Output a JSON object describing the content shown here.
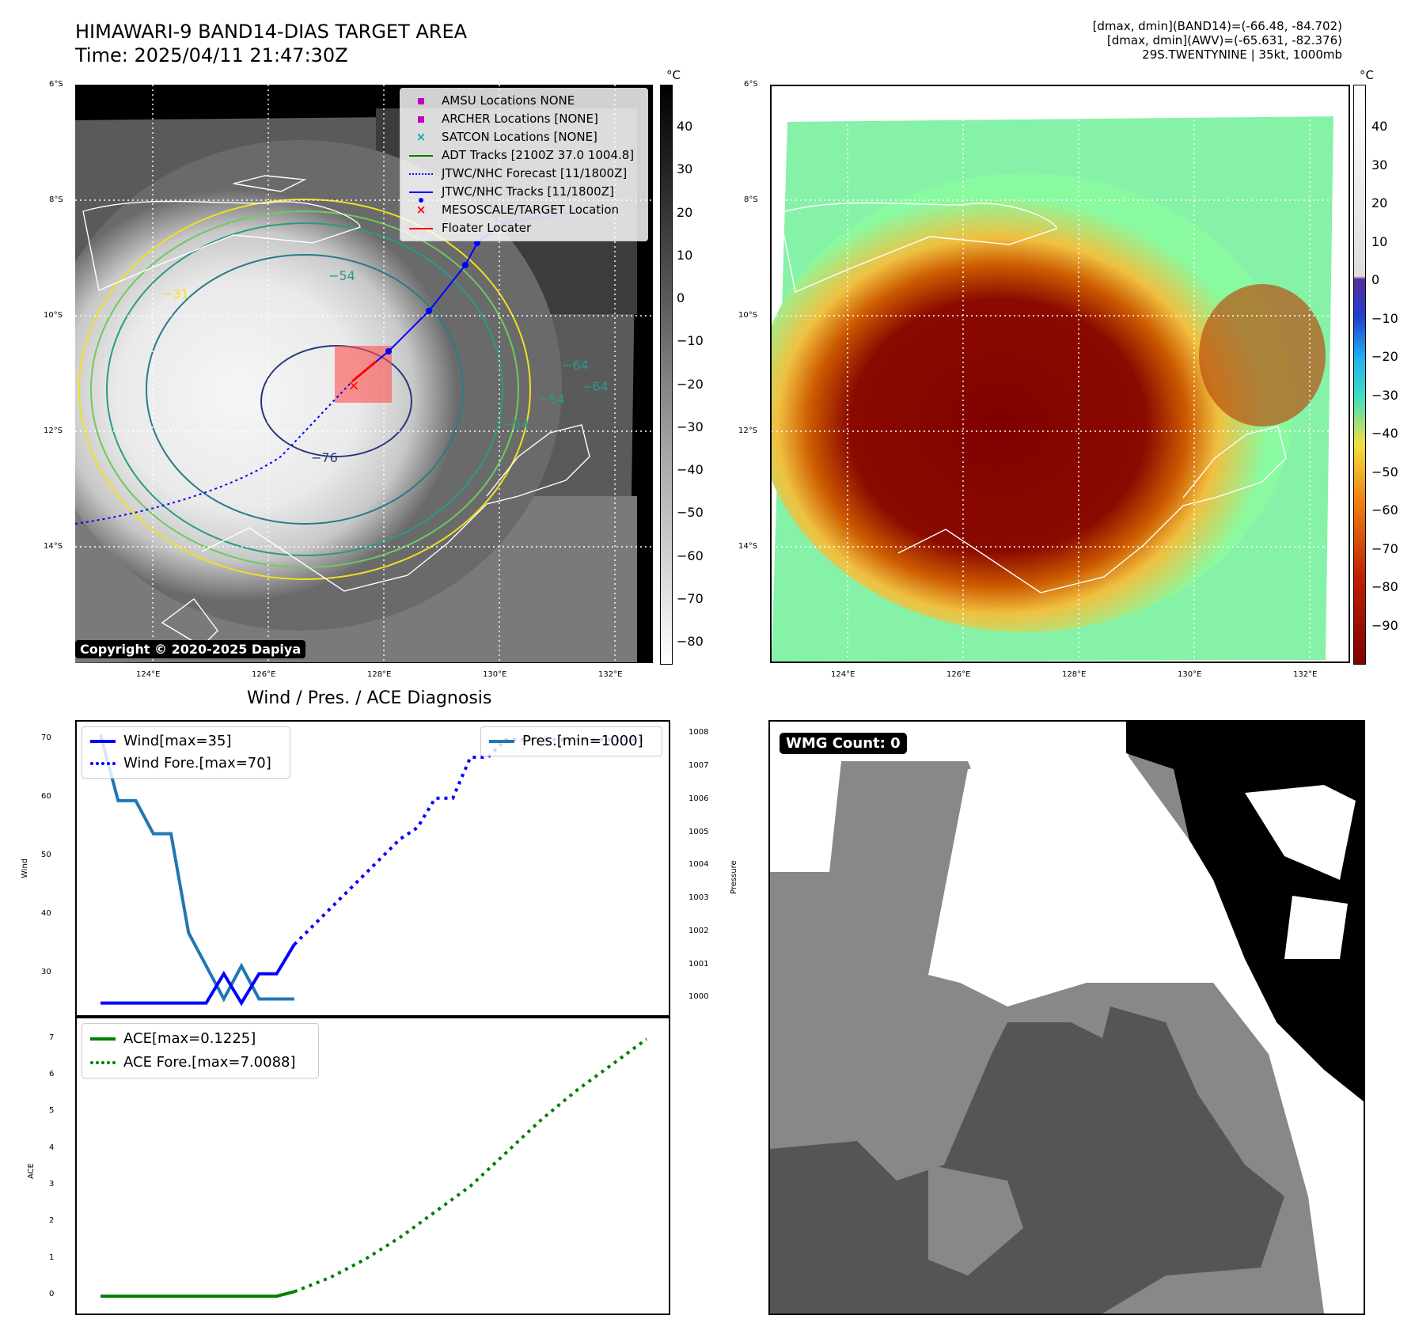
{
  "header": {
    "title_line1": "HIMAWARI-9 BAND14-DIAS TARGET AREA",
    "title_line2": "Time: 2025/04/11 21:47:30Z",
    "info_line1": "[dmax, dmin](BAND14)=(-66.48, -84.702)",
    "info_line2": "[dmax, dmin](AWV)=(-65.631, -82.376)",
    "info_line3": "29S.TWENTYNINE | 35kt, 1000mb"
  },
  "map": {
    "lat_labels": [
      "6°S",
      "8°S",
      "10°S",
      "12°S",
      "14°S"
    ],
    "lon_labels": [
      "124°E",
      "126°E",
      "128°E",
      "130°E",
      "132°E"
    ],
    "colorbar_unit": "°C",
    "colorbar_left_ticks": [
      "40",
      "30",
      "20",
      "10",
      "0",
      "−10",
      "−20",
      "−30",
      "−40",
      "−50",
      "−60",
      "−70",
      "−80"
    ],
    "colorbar_right_ticks": [
      "40",
      "30",
      "20",
      "10",
      "0",
      "−10",
      "−20",
      "−30",
      "−40",
      "−50",
      "−60",
      "−70",
      "−80",
      "−90"
    ],
    "contour_labels": [
      "−31",
      "−54",
      "−64",
      "−76",
      "−54",
      "−64",
      "−54"
    ],
    "copyright": "Copyright © 2020-2025 Dapiya",
    "legend": [
      {
        "label": "AMSU Locations NONE",
        "icon": "square-marker",
        "color": "#c000c0"
      },
      {
        "label": "ARCHER Locations [NONE]",
        "icon": "square-marker",
        "color": "#c000c0"
      },
      {
        "label": "SATCON Locations [NONE]",
        "icon": "x-marker",
        "color": "#00b0b0"
      },
      {
        "label": "ADT Tracks [2100Z 37.0 1004.8]",
        "icon": "solid-line",
        "color": "#008000"
      },
      {
        "label": "JTWC/NHC Forecast [11/1800Z]",
        "icon": "dotted-line",
        "color": "#0000ff"
      },
      {
        "label": "JTWC/NHC Tracks [11/1800Z]",
        "icon": "line-dot",
        "color": "#0000ff"
      },
      {
        "label": "MESOSCALE/TARGET Location",
        "icon": "x-marker",
        "color": "#ff0000"
      },
      {
        "label": "Floater Locater",
        "icon": "solid-line",
        "color": "#ff0000"
      }
    ]
  },
  "diagnosis": {
    "title": "Wind / Pres. / ACE Diagnosis",
    "wind_ylabel": "Wind",
    "pres_ylabel": "Pressure",
    "ace_ylabel": "ACE",
    "legend_wind": "Wind[max=35]",
    "legend_wind_fore": "Wind Fore.[max=70]",
    "legend_pres": "Pres.[min=1000]",
    "legend_ace": "ACE[max=0.1225]",
    "legend_ace_fore": "ACE Fore.[max=7.0088]"
  },
  "wmg": {
    "label": "WMG Count: 0"
  },
  "chart_data": [
    {
      "type": "line",
      "title": "Wind / Pres. / ACE Diagnosis",
      "ylabel": "Wind",
      "ylim": [
        24,
        72
      ],
      "yticks": [
        30,
        40,
        50,
        60,
        70
      ],
      "x": [
        0,
        1,
        2,
        3,
        4,
        5,
        6,
        7,
        8,
        9,
        10,
        11,
        12,
        13,
        14,
        15,
        16,
        17,
        18,
        19,
        20,
        21,
        22,
        23,
        24,
        25,
        26,
        27,
        28,
        29,
        30,
        31
      ],
      "series": [
        {
          "name": "Wind[max=35]",
          "x": [
            0,
            1,
            2,
            3,
            4,
            5,
            6,
            7,
            8,
            9,
            10,
            11
          ],
          "values": [
            25,
            25,
            25,
            25,
            25,
            25,
            25,
            30,
            25,
            30,
            30,
            35
          ]
        },
        {
          "name": "Wind Fore.[max=70]",
          "x": [
            11,
            12,
            13,
            14,
            15,
            16,
            17,
            18,
            19,
            20,
            21,
            22,
            23,
            24,
            25,
            26,
            27,
            28,
            29,
            30,
            31
          ],
          "values": [
            35,
            38,
            41,
            44,
            47,
            50,
            53,
            55,
            60,
            60,
            67,
            67,
            70,
            70,
            70,
            70,
            70,
            70,
            70,
            70,
            70
          ]
        }
      ]
    },
    {
      "type": "line",
      "ylabel": "Pressure",
      "ylim": [
        999.7,
        1008.2
      ],
      "yticks": [
        1000,
        1001,
        1002,
        1003,
        1004,
        1005,
        1006,
        1007,
        1008
      ],
      "series": [
        {
          "name": "Pres.[min=1000]",
          "x": [
            0,
            1,
            2,
            3,
            4,
            5,
            6,
            7,
            8,
            9,
            10,
            11
          ],
          "values": [
            1008,
            1006,
            1006,
            1005,
            1005,
            1002,
            1001,
            1000,
            1001,
            1000,
            1000,
            1000
          ]
        }
      ]
    },
    {
      "type": "line",
      "ylabel": "ACE",
      "ylim": [
        -0.3,
        7.4
      ],
      "yticks": [
        0,
        1,
        2,
        3,
        4,
        5,
        6,
        7
      ],
      "series": [
        {
          "name": "ACE[max=0.1225]",
          "x": [
            0,
            1,
            2,
            3,
            4,
            5,
            6,
            7,
            8,
            9,
            10,
            11
          ],
          "values": [
            0,
            0,
            0,
            0,
            0,
            0,
            0,
            0,
            0,
            0,
            0,
            0.1225
          ]
        },
        {
          "name": "ACE Fore.[max=7.0088]",
          "x": [
            11,
            13,
            15,
            17,
            19,
            21,
            23,
            25,
            27,
            29,
            31
          ],
          "values": [
            0.1225,
            0.5,
            1.0,
            1.6,
            2.3,
            3.0,
            3.9,
            4.8,
            5.6,
            6.3,
            7.0088
          ]
        }
      ]
    }
  ]
}
